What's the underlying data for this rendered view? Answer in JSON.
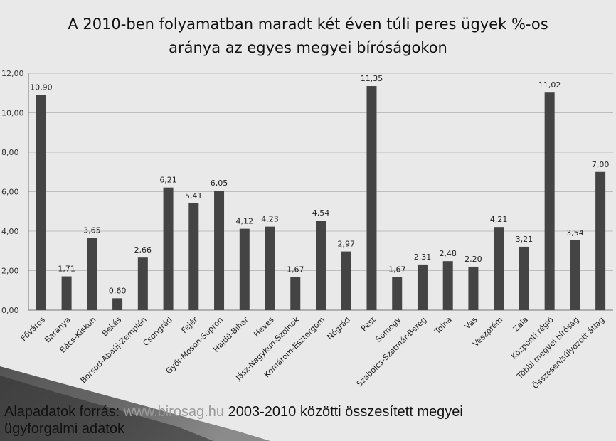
{
  "chart_data": {
    "type": "bar",
    "title_lines": [
      "A 2010-ben folyamatban maradt  két éven túli peres ügyek  %-os",
      "aránya az egyes megyei bíróságokon"
    ],
    "categories": [
      "Főváros",
      "Baranya",
      "Bács-Kiskun",
      "Békés",
      "Borsod-Abaúj-Zemplén",
      "Csongrád",
      "Fejér",
      "Győr-Moson-Sopron",
      "Hajdú-Bihar",
      "Heves",
      "Jász-Nagykun-Szolnok",
      "Komárom-Esztergom",
      "Nógrád",
      "Pest",
      "Somogy",
      "Szabolcs-Szatmár-Bereg",
      "Tolna",
      "Vas",
      "Veszprém",
      "Zala",
      "Központi régió",
      "Többi megyei bíróság",
      "Összesen/súlyozott átlag"
    ],
    "values": [
      10.9,
      1.71,
      3.65,
      0.6,
      2.66,
      6.21,
      5.41,
      6.05,
      4.12,
      4.23,
      1.67,
      4.54,
      2.97,
      11.35,
      1.67,
      2.31,
      2.48,
      2.2,
      4.21,
      3.21,
      11.02,
      3.54,
      7.0
    ],
    "data_labels": [
      "10,90",
      "1,71",
      "3,65",
      "0,60",
      "2,66",
      "6,21",
      "5,41",
      "6,05",
      "4,12",
      "4,23",
      "1,67",
      "4,54",
      "2,97",
      "11,35",
      "1,67",
      "2,31",
      "2,48",
      "2,20",
      "4,21",
      "3,21",
      "11,02",
      "3,54",
      "7,00"
    ],
    "y_ticks": [
      0,
      2,
      4,
      6,
      8,
      10,
      12
    ],
    "y_tick_labels": [
      "0,00",
      "2,00",
      "4,00",
      "6,00",
      "8,00",
      "10,00",
      "12,00"
    ],
    "ylim": [
      0,
      12
    ],
    "grid": true,
    "bar_color": "#444444",
    "grid_color": "#bdbdbd"
  },
  "source_note": {
    "part1": "Alapadatok forrás: ",
    "part2": "www.birosag.hu ",
    "part3": "2003-2010 közötti összesített megyei",
    "line2": "ügyforgalmi adatok"
  }
}
